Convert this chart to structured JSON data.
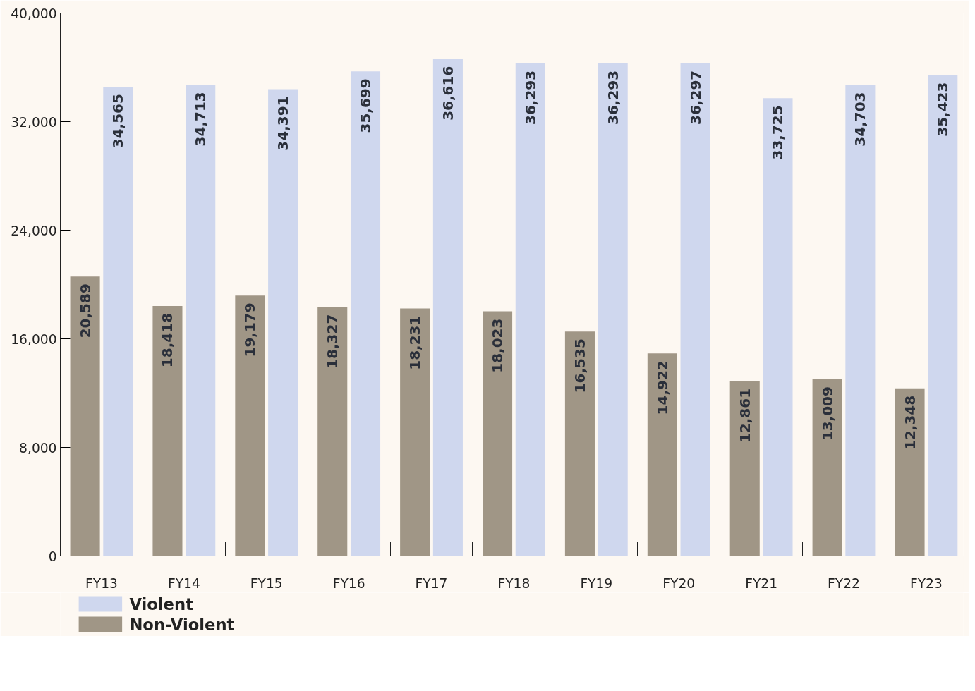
{
  "chart_data": {
    "type": "bar",
    "categories": [
      "FY13",
      "FY14",
      "FY15",
      "FY16",
      "FY17",
      "FY18",
      "FY19",
      "FY20",
      "FY21",
      "FY22",
      "FY23"
    ],
    "series": [
      {
        "name": "Non-Violent",
        "color": "#a09686",
        "values": [
          20589,
          18418,
          19179,
          18327,
          18231,
          18023,
          16535,
          14922,
          12861,
          13009,
          12348
        ],
        "value_labels": [
          "20,589",
          "18,418",
          "19,179",
          "18,327",
          "18,231",
          "18,023",
          "16,535",
          "14,922",
          "12,861",
          "13,009",
          "12,348"
        ]
      },
      {
        "name": "Violent",
        "color": "#cfd7ee",
        "values": [
          34565,
          34713,
          34391,
          35699,
          36616,
          36293,
          36293,
          36297,
          33725,
          34703,
          35423
        ],
        "value_labels": [
          "34,565",
          "34,713",
          "34,391",
          "35,699",
          "36,616",
          "36,293",
          "36,293",
          "36,297",
          "33,725",
          "34,703",
          "35,423"
        ]
      }
    ],
    "ylim": [
      0,
      40000
    ],
    "yticks": [
      {
        "value": 0,
        "label": "0"
      },
      {
        "value": 8000,
        "label": "8,000"
      },
      {
        "value": 16000,
        "label": "16,000"
      },
      {
        "value": 24000,
        "label": "24,000"
      },
      {
        "value": 32000,
        "label": "32,000"
      },
      {
        "value": 40000,
        "label": "40,000"
      }
    ],
    "legend": "bottom left",
    "grid": false
  }
}
